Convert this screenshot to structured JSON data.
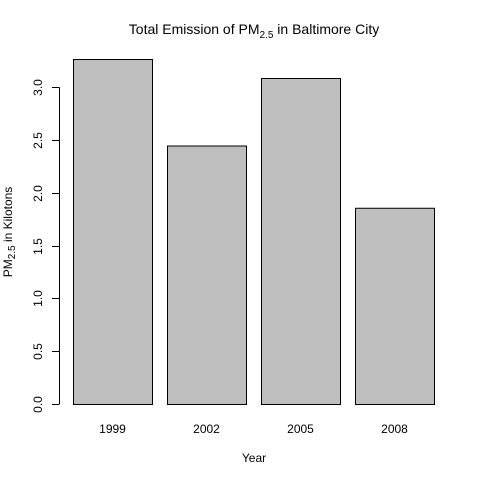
{
  "chart_data": {
    "type": "bar",
    "title": {
      "main": "Total Emission of PM",
      "subscript": "2.5",
      "rest": " in Baltimore City"
    },
    "xlabel": "Year",
    "ylabel": {
      "main": "PM",
      "subscript": "2.5",
      "rest": " in Kilotons"
    },
    "categories": [
      "1999",
      "2002",
      "2005",
      "2008"
    ],
    "values": [
      3.27,
      2.45,
      3.09,
      1.86
    ],
    "yticks": [
      "0.0",
      "0.5",
      "1.0",
      "1.5",
      "2.0",
      "2.5",
      "3.0"
    ],
    "ylim": [
      0,
      3.27
    ],
    "grid": false,
    "legend": "none",
    "colors": {
      "bar_fill": "#bebebe",
      "bar_stroke": "#000000",
      "axis": "#000000"
    }
  }
}
